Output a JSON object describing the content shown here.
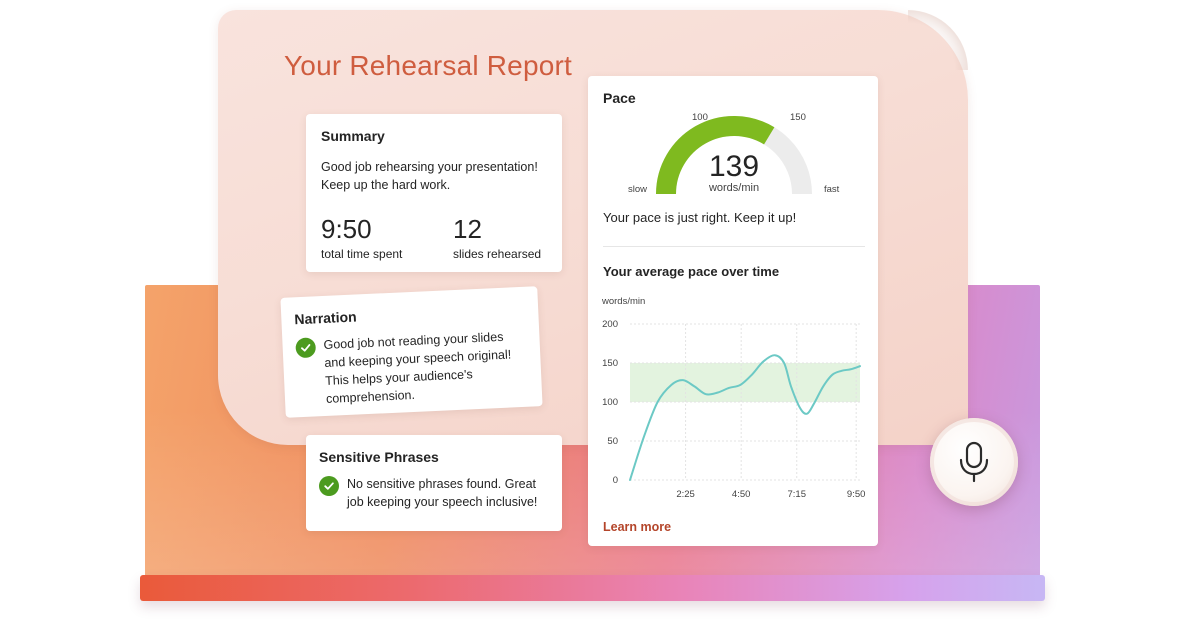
{
  "title": "Your Rehearsal Report",
  "summary": {
    "heading": "Summary",
    "message": "Good job rehearsing your presentation! Keep up the hard work.",
    "time_value": "9:50",
    "time_label": "total time spent",
    "slides_value": "12",
    "slides_label": "slides rehearsed"
  },
  "narration": {
    "heading": "Narration",
    "message": "Good job not reading your slides and keeping your speech original! This helps your audience's comprehension.",
    "icon": "checkmark-circle-icon"
  },
  "sensitive": {
    "heading": "Sensitive Phrases",
    "message": "No sensitive phrases found. Great job keeping your speech inclusive!",
    "icon": "checkmark-circle-icon"
  },
  "pace": {
    "heading": "Pace",
    "value": "139",
    "unit": "words/min",
    "label_100": "100",
    "label_150": "150",
    "label_slow": "slow",
    "label_fast": "fast",
    "gauge_min": 50,
    "gauge_max": 200,
    "gauge_value": 139,
    "message": "Your pace is just right. Keep it up!",
    "avg_heading": "Your average pace over time",
    "learn_more": "Learn more"
  },
  "colors": {
    "accent_title": "#cf5d3f",
    "gauge_fill": "#7fba1f",
    "gauge_track": "#ececec",
    "check_green": "#4c9b1f",
    "line": "#6cc9c5",
    "target_band": "#e3f3df",
    "link": "#b4452a"
  },
  "mic_icon": "microphone-icon",
  "chart_data": {
    "type": "line",
    "ylabel": "words/min",
    "xlabel": "",
    "ylim": [
      0,
      200
    ],
    "yticks": [
      0,
      50,
      100,
      150,
      200
    ],
    "xlim": [
      0,
      10.0
    ],
    "xtick_labels": [
      "2:25",
      "4:50",
      "7:15",
      "9:50"
    ],
    "xtick_values": [
      2.4167,
      4.8333,
      7.25,
      9.8333
    ],
    "target_band": [
      100,
      150
    ],
    "grid": true,
    "series": [
      {
        "x": [
          0,
          0.6,
          1.2,
          1.8,
          2.3,
          2.8,
          3.3,
          3.8,
          4.3,
          4.8,
          5.3,
          5.8,
          6.3,
          6.7,
          7.0,
          7.4,
          7.7,
          8.0,
          8.4,
          8.8,
          9.2,
          9.6,
          10.0
        ],
        "y": [
          0,
          55,
          100,
          122,
          128,
          120,
          110,
          112,
          118,
          122,
          135,
          152,
          160,
          150,
          120,
          92,
          85,
          98,
          120,
          135,
          140,
          142,
          146
        ]
      }
    ]
  }
}
